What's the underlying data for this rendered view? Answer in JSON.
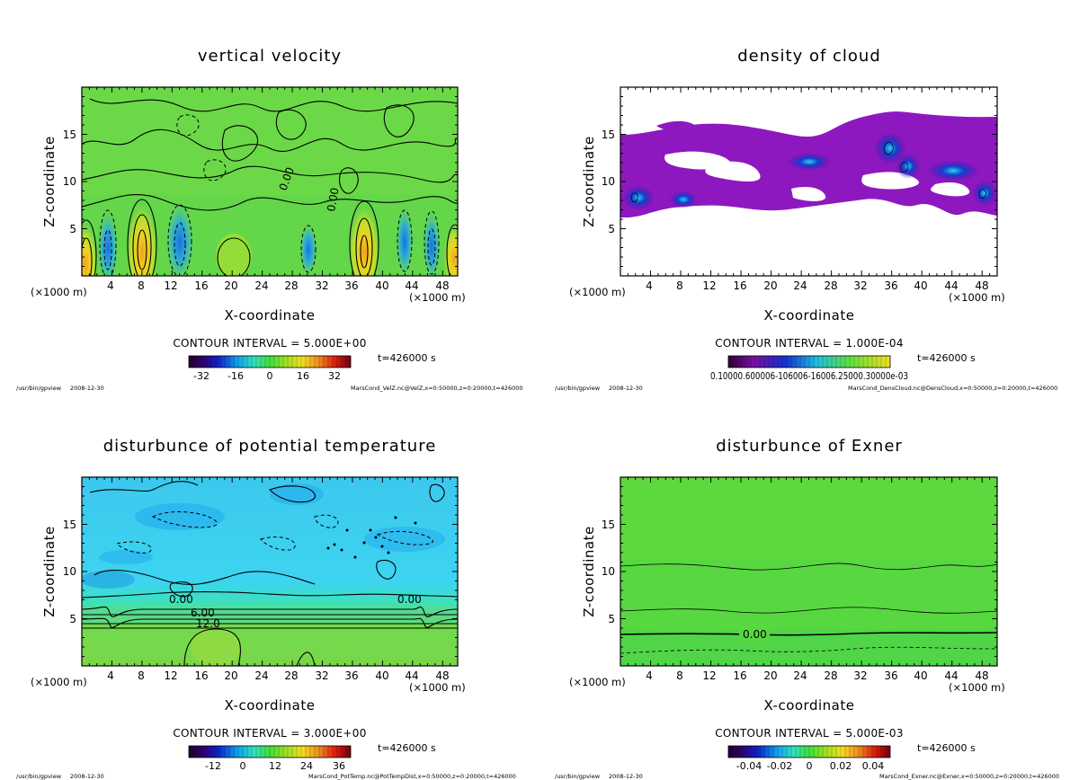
{
  "figure": {
    "footer_program": "/usr/bin/gpview",
    "footer_date": "2008-12-30",
    "time_label": "t=426000  s",
    "unit_x": "(×1000 m)",
    "unit_x_axis": "(×1000 m)",
    "xlabel": "X-coordinate",
    "ylabel": "Z-coordinate"
  },
  "chart_data": [
    {
      "id": "velz",
      "type": "contour",
      "title": "vertical velocity",
      "xlabel": "X-coordinate",
      "ylabel": "Z-coordinate",
      "xlim": [
        0,
        50
      ],
      "ylim": [
        0,
        20
      ],
      "x_ticks": [
        4,
        8,
        12,
        16,
        20,
        24,
        28,
        32,
        36,
        40,
        44,
        48
      ],
      "y_ticks": [
        5,
        10,
        15
      ],
      "contour_interval": "CONTOUR INTERVAL = 5.000E+00",
      "contour_labels": [
        "0.00",
        "0.00"
      ],
      "colorbar_ticks": [
        "-32",
        "-16",
        "0",
        "16",
        "32"
      ],
      "colorbar_range": [
        -40,
        40
      ],
      "source": "MarsCond_VelZ.nc@VelZ,x=0:50000,z=0:20000,t=426000"
    },
    {
      "id": "cloud",
      "type": "contour",
      "title": "density of cloud",
      "xlabel": "X-coordinate",
      "ylabel": "Z-coordinate",
      "xlim": [
        0,
        50
      ],
      "ylim": [
        0,
        20
      ],
      "x_ticks": [
        4,
        8,
        12,
        16,
        20,
        24,
        28,
        32,
        36,
        40,
        44,
        48
      ],
      "y_ticks": [
        5,
        10,
        15
      ],
      "contour_interval": "CONTOUR INTERVAL = 1.000E-04",
      "colorbar_tick_text": "0.10000.600006-106006-16006.25000.30000e-03",
      "source": "MarsCond_DensCloud.nc@DensCloud,x=0:50000,z=0:20000,t=426000"
    },
    {
      "id": "pottemp",
      "type": "contour",
      "title": "disturbunce of potential temperature",
      "xlabel": "X-coordinate",
      "ylabel": "Z-coordinate",
      "xlim": [
        0,
        50
      ],
      "ylim": [
        0,
        20
      ],
      "x_ticks": [
        4,
        8,
        12,
        16,
        20,
        24,
        28,
        32,
        36,
        40,
        44,
        48
      ],
      "y_ticks": [
        5,
        10,
        15
      ],
      "contour_interval": "CONTOUR INTERVAL = 3.000E+00",
      "contour_labels": [
        "0.00",
        "6.00",
        "12.0",
        "0.00"
      ],
      "colorbar_ticks": [
        "-12",
        "0",
        "12",
        "24",
        "36"
      ],
      "colorbar_range": [
        -21,
        42
      ],
      "source": "MarsCond_PotTemp.nc@PotTempDist,x=0:50000,z=0:20000,t=426000"
    },
    {
      "id": "exner",
      "type": "contour",
      "title": "disturbunce of Exner",
      "xlabel": "X-coordinate",
      "ylabel": "Z-coordinate",
      "xlim": [
        0,
        50
      ],
      "ylim": [
        0,
        20
      ],
      "x_ticks": [
        4,
        8,
        12,
        16,
        20,
        24,
        28,
        32,
        36,
        40,
        44,
        48
      ],
      "y_ticks": [
        5,
        10,
        15
      ],
      "contour_interval": "CONTOUR INTERVAL = 5.000E-03",
      "contour_labels": [
        "0.00"
      ],
      "colorbar_ticks": [
        "-0.04",
        "-0.02",
        "0",
        "0.02",
        "0.04"
      ],
      "colorbar_range": [
        -0.05,
        0.05
      ],
      "source": "MarsCond_Exner.nc@Exner,x=0:50000,z=0:20000,t=426000"
    }
  ]
}
